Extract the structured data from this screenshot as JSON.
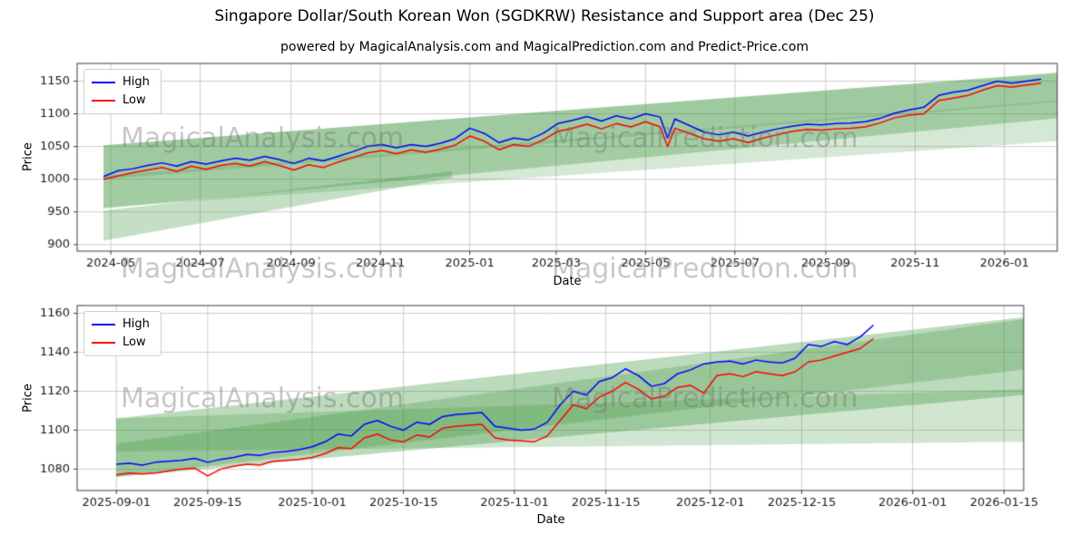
{
  "figure": {
    "title": "Singapore Dollar/South Korean Won (SGDKRW) Resistance and Support area (Dec 25)",
    "subtitle": "powered by MagicalAnalysis.com and MagicalPrediction.com and Predict-Price.com"
  },
  "watermarks": {
    "text_a": "MagicalAnalysis.com",
    "text_b": "MagicalPrediction.com",
    "color": "rgba(110,110,110,0.38)"
  },
  "legend": {
    "high": "High",
    "low": "Low",
    "high_color": "#0000ff",
    "low_color": "#ff0000"
  },
  "colors": {
    "grid": "#cccccc",
    "spine": "#3c3c3c",
    "tick_text": "#1a1a1a",
    "band_green": "#2e8b2e"
  },
  "chart_data": [
    {
      "type": "line",
      "title": "",
      "xlabel": "Date",
      "ylabel": "Price",
      "xlim": [
        "2024-04-08",
        "2026-02-06"
      ],
      "ylim": [
        890,
        1177
      ],
      "yticks": [
        900,
        950,
        1000,
        1050,
        1100,
        1150
      ],
      "xticks": [
        {
          "label": "2024-05",
          "date": "2024-05-01"
        },
        {
          "label": "2024-07",
          "date": "2024-07-01"
        },
        {
          "label": "2024-09",
          "date": "2024-09-01"
        },
        {
          "label": "2024-11",
          "date": "2024-11-01"
        },
        {
          "label": "2025-01",
          "date": "2025-01-01"
        },
        {
          "label": "2025-03",
          "date": "2025-03-01"
        },
        {
          "label": "2025-05",
          "date": "2025-05-01"
        },
        {
          "label": "2025-07",
          "date": "2025-07-01"
        },
        {
          "label": "2025-09",
          "date": "2025-09-01"
        },
        {
          "label": "2025-11",
          "date": "2025-11-01"
        },
        {
          "label": "2026-01",
          "date": "2026-01-01"
        }
      ],
      "dates": [
        "2024-04-26",
        "2024-05-06",
        "2024-05-16",
        "2024-05-26",
        "2024-06-05",
        "2024-06-15",
        "2024-06-25",
        "2024-07-05",
        "2024-07-15",
        "2024-07-25",
        "2024-08-04",
        "2024-08-14",
        "2024-08-24",
        "2024-09-03",
        "2024-09-13",
        "2024-09-23",
        "2024-10-03",
        "2024-10-13",
        "2024-10-23",
        "2024-11-02",
        "2024-11-12",
        "2024-11-22",
        "2024-12-02",
        "2024-12-12",
        "2024-12-22",
        "2025-01-01",
        "2025-01-11",
        "2025-01-21",
        "2025-01-31",
        "2025-02-10",
        "2025-02-20",
        "2025-03-02",
        "2025-03-12",
        "2025-03-22",
        "2025-04-01",
        "2025-04-11",
        "2025-04-21",
        "2025-05-01",
        "2025-05-11",
        "2025-05-16",
        "2025-05-21",
        "2025-05-31",
        "2025-06-10",
        "2025-06-20",
        "2025-06-30",
        "2025-07-10",
        "2025-07-20",
        "2025-07-30",
        "2025-08-09",
        "2025-08-19",
        "2025-08-29",
        "2025-09-08",
        "2025-09-18",
        "2025-09-28",
        "2025-10-08",
        "2025-10-18",
        "2025-10-28",
        "2025-11-07",
        "2025-11-17",
        "2025-11-27",
        "2025-12-07",
        "2025-12-17",
        "2025-12-27",
        "2026-01-06",
        "2026-01-16",
        "2026-01-26"
      ],
      "series": [
        {
          "name": "High",
          "color": "#0000ff",
          "values": [
            1004,
            1013,
            1016,
            1021,
            1025,
            1020,
            1027,
            1023,
            1028,
            1032,
            1029,
            1035,
            1030,
            1024,
            1032,
            1028,
            1035,
            1042,
            1050,
            1053,
            1048,
            1053,
            1050,
            1055,
            1062,
            1078,
            1070,
            1056,
            1063,
            1060,
            1070,
            1085,
            1090,
            1096,
            1089,
            1097,
            1092,
            1100,
            1095,
            1063,
            1092,
            1082,
            1072,
            1068,
            1072,
            1066,
            1072,
            1077,
            1081,
            1084,
            1083,
            1085,
            1086,
            1088,
            1093,
            1101,
            1106,
            1110,
            1128,
            1133,
            1136,
            1143,
            1150,
            1147,
            1150,
            1153
          ]
        },
        {
          "name": "Low",
          "color": "#ff0000",
          "values": [
            1000,
            1005,
            1010,
            1014,
            1018,
            1012,
            1020,
            1015,
            1021,
            1024,
            1020,
            1027,
            1021,
            1014,
            1022,
            1018,
            1026,
            1033,
            1040,
            1044,
            1039,
            1045,
            1041,
            1046,
            1052,
            1066,
            1058,
            1045,
            1053,
            1050,
            1060,
            1073,
            1078,
            1084,
            1077,
            1085,
            1080,
            1088,
            1080,
            1050,
            1078,
            1070,
            1062,
            1058,
            1062,
            1056,
            1063,
            1068,
            1073,
            1076,
            1075,
            1077,
            1078,
            1080,
            1086,
            1094,
            1098,
            1100,
            1120,
            1124,
            1128,
            1136,
            1143,
            1141,
            1144,
            1147
          ]
        }
      ],
      "bands": [
        {
          "x": [
            "2024-04-26",
            "2026-02-06"
          ],
          "y_start": [
            955,
            1052
          ],
          "y_end": [
            1093,
            1163
          ],
          "color": "#2e8b2e",
          "alpha": 0.3
        },
        {
          "x": [
            "2024-04-26",
            "2026-02-06"
          ],
          "y_start": [
            1000,
            1052
          ],
          "y_end": [
            1118,
            1162
          ],
          "color": "#2e8b2e",
          "alpha": 0.22
        },
        {
          "x": [
            "2024-04-26",
            "2026-02-06"
          ],
          "y_start": [
            957,
            1005
          ],
          "y_end": [
            1058,
            1120
          ],
          "color": "#2e8b2e",
          "alpha": 0.2
        },
        {
          "x": [
            "2024-04-26",
            "2024-12-20"
          ],
          "y_start": [
            906,
            952
          ],
          "y_end": [
            1002,
            1012
          ],
          "color": "#2e8b2e",
          "alpha": 0.28
        }
      ]
    },
    {
      "type": "line",
      "title": "",
      "xlabel": "Date",
      "ylabel": "Price",
      "xlim": [
        "2025-08-26",
        "2026-01-18"
      ],
      "ylim": [
        1069,
        1164
      ],
      "yticks": [
        1080,
        1100,
        1120,
        1140,
        1160
      ],
      "xticks": [
        {
          "label": "2025-09-01",
          "date": "2025-09-01"
        },
        {
          "label": "2025-09-15",
          "date": "2025-09-15"
        },
        {
          "label": "2025-10-01",
          "date": "2025-10-01"
        },
        {
          "label": "2025-10-15",
          "date": "2025-10-15"
        },
        {
          "label": "2025-11-01",
          "date": "2025-11-01"
        },
        {
          "label": "2025-11-15",
          "date": "2025-11-15"
        },
        {
          "label": "2025-12-01",
          "date": "2025-12-01"
        },
        {
          "label": "2025-12-15",
          "date": "2025-12-15"
        },
        {
          "label": "2026-01-01",
          "date": "2026-01-01"
        },
        {
          "label": "2026-01-15",
          "date": "2026-01-15"
        }
      ],
      "dates": [
        "2025-09-01",
        "2025-09-03",
        "2025-09-05",
        "2025-09-07",
        "2025-09-09",
        "2025-09-11",
        "2025-09-13",
        "2025-09-15",
        "2025-09-17",
        "2025-09-19",
        "2025-09-21",
        "2025-09-23",
        "2025-09-25",
        "2025-09-27",
        "2025-09-29",
        "2025-10-01",
        "2025-10-03",
        "2025-10-05",
        "2025-10-07",
        "2025-10-09",
        "2025-10-11",
        "2025-10-13",
        "2025-10-15",
        "2025-10-17",
        "2025-10-19",
        "2025-10-21",
        "2025-10-23",
        "2025-10-25",
        "2025-10-27",
        "2025-10-29",
        "2025-10-31",
        "2025-11-02",
        "2025-11-04",
        "2025-11-06",
        "2025-11-08",
        "2025-11-10",
        "2025-11-12",
        "2025-11-14",
        "2025-11-16",
        "2025-11-18",
        "2025-11-20",
        "2025-11-22",
        "2025-11-24",
        "2025-11-26",
        "2025-11-28",
        "2025-11-30",
        "2025-12-02",
        "2025-12-04",
        "2025-12-06",
        "2025-12-08",
        "2025-12-10",
        "2025-12-12",
        "2025-12-14",
        "2025-12-16",
        "2025-12-18",
        "2025-12-20",
        "2025-12-22",
        "2025-12-24",
        "2025-12-26"
      ],
      "series": [
        {
          "name": "High",
          "color": "#0000ff",
          "values": [
            1082.5,
            1083,
            1082,
            1083.5,
            1084,
            1084.5,
            1085.5,
            1083.5,
            1085,
            1086,
            1087.5,
            1087,
            1088.5,
            1089,
            1090,
            1091.5,
            1094,
            1098,
            1097,
            1103,
            1105,
            1102,
            1100,
            1104,
            1103,
            1107,
            1108,
            1108.5,
            1109,
            1102,
            1101,
            1100,
            1100.5,
            1104,
            1113,
            1120,
            1118,
            1125,
            1127,
            1131.5,
            1128,
            1122.5,
            1124,
            1129,
            1131,
            1134,
            1135,
            1135.5,
            1134,
            1136,
            1135,
            1134.5,
            1137,
            1144,
            1143,
            1145.5,
            1144,
            1148,
            1154
          ]
        },
        {
          "name": "Low",
          "color": "#ff0000",
          "values": [
            1077,
            1078,
            1077.5,
            1078,
            1079,
            1080,
            1080.5,
            1076.5,
            1080,
            1081.5,
            1082.5,
            1082,
            1084,
            1084.5,
            1085,
            1086,
            1088,
            1091,
            1090.5,
            1096,
            1098,
            1095,
            1094,
            1097.5,
            1096.5,
            1101,
            1102,
            1102.5,
            1103,
            1096,
            1095,
            1094.5,
            1094,
            1097,
            1105,
            1113,
            1111,
            1117,
            1120,
            1124.5,
            1121,
            1116,
            1117.5,
            1122,
            1123,
            1119,
            1128,
            1129,
            1127.5,
            1130,
            1129,
            1128,
            1130,
            1135,
            1136,
            1138,
            1140,
            1142,
            1147
          ]
        }
      ],
      "bands": [
        {
          "x": [
            "2025-09-01",
            "2026-01-18"
          ],
          "y_start": [
            1076,
            1106
          ],
          "y_end": [
            1118,
            1158
          ],
          "color": "#2e8b2e",
          "alpha": 0.32
        },
        {
          "x": [
            "2025-09-01",
            "2026-01-18"
          ],
          "y_start": [
            1076,
            1093
          ],
          "y_end": [
            1131,
            1157
          ],
          "color": "#2e8b2e",
          "alpha": 0.25
        },
        {
          "x": [
            "2025-09-01",
            "2026-01-18"
          ],
          "y_start": [
            1089,
            1106
          ],
          "y_end": [
            1094,
            1121
          ],
          "color": "#2e8b2e",
          "alpha": 0.22
        }
      ]
    }
  ]
}
